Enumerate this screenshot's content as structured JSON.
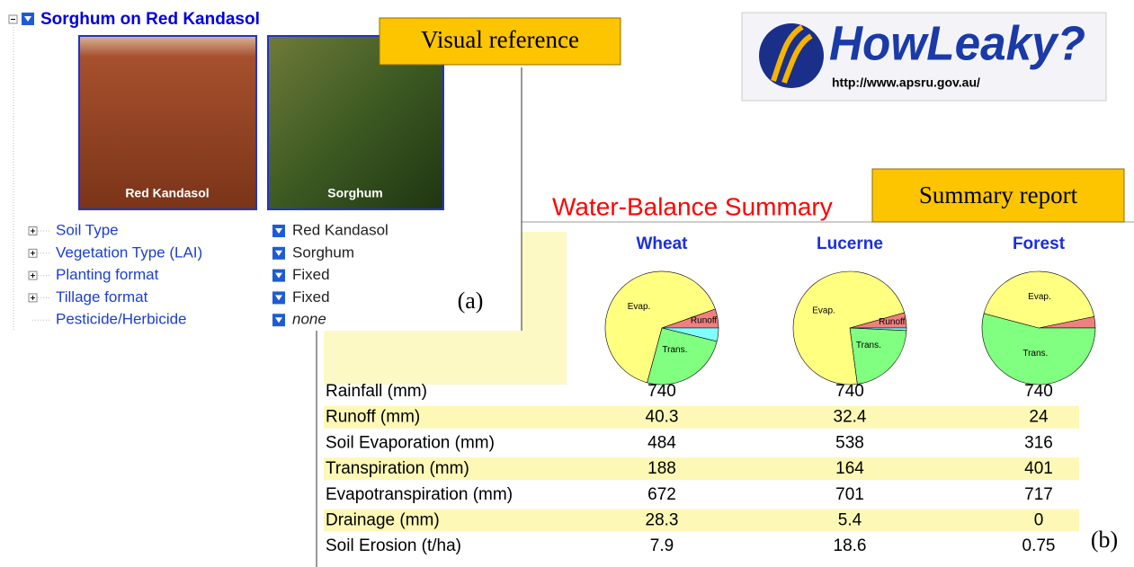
{
  "panel_a": {
    "title": "Sorghum on Red Kandasol",
    "images": [
      "Red Kandasol",
      "Sorghum"
    ],
    "items": [
      {
        "label": "Soil Type",
        "value": "Red Kandasol"
      },
      {
        "label": "Vegetation Type (LAI)",
        "value": "Sorghum"
      },
      {
        "label": "Planting format",
        "value": "Fixed"
      },
      {
        "label": "Tillage format",
        "value": "Fixed"
      },
      {
        "label": "Pesticide/Herbicide",
        "value": "none"
      }
    ],
    "tag": "(a)",
    "callout": "Visual reference"
  },
  "logo": {
    "name": "HowLeaky?",
    "url": "http://www.apsru.gov.au/"
  },
  "panel_b": {
    "title": "Water-Balance Summary",
    "callout": "Summary report",
    "tag": "(b)",
    "columns": [
      "Wheat",
      "Lucerne",
      "Forest"
    ],
    "pie_labels": {
      "evap": "Evap.",
      "runoff": "Runoff",
      "trans": "Trans."
    },
    "rows": [
      {
        "label": "Rainfall (mm)",
        "values": [
          740,
          740,
          740
        ]
      },
      {
        "label": "Runoff (mm)",
        "values": [
          40.3,
          32.4,
          24
        ]
      },
      {
        "label": "Soil Evaporation (mm)",
        "values": [
          484,
          538,
          316
        ]
      },
      {
        "label": "Transpiration (mm)",
        "values": [
          188,
          164,
          401
        ]
      },
      {
        "label": "Evapotranspiration (mm)",
        "values": [
          672,
          701,
          717
        ]
      },
      {
        "label": "Drainage (mm)",
        "values": [
          28.3,
          5.4,
          0
        ]
      },
      {
        "label": "Soil Erosion (t/ha)",
        "values": [
          7.9,
          18.6,
          0.75
        ]
      }
    ]
  }
}
